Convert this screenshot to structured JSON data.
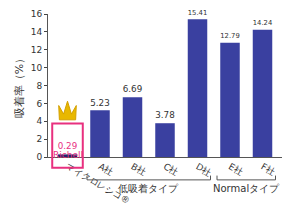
{
  "chart_data": {
    "type": "bar",
    "y_label": "吸着率（%）",
    "categories": [
      "マイクロレシコ®",
      "A社",
      "B社",
      "C社",
      "D社",
      "E社",
      "F社"
    ],
    "values": [
      0.29,
      5.23,
      6.69,
      3.78,
      15.41,
      12.79,
      14.24
    ],
    "colors": [
      "#22236e",
      "#3a40a0",
      "#3a40a0",
      "#3a40a0",
      "#3a40a0",
      "#3a40a0",
      "#3a40a0"
    ],
    "annotations": [
      "Richell"
    ],
    "groups": [
      {
        "label": "低吸着タイプ",
        "categories": [
          "A社",
          "B社",
          "C社",
          "D社"
        ]
      },
      {
        "label": "Normalタイプ",
        "categories": [
          "E社",
          "F社"
        ]
      }
    ],
    "ylim": [
      0,
      16
    ],
    "yticks": [
      0,
      2,
      4,
      6,
      8,
      10,
      12,
      14,
      16
    ],
    "grid": false,
    "data_labels": true
  }
}
